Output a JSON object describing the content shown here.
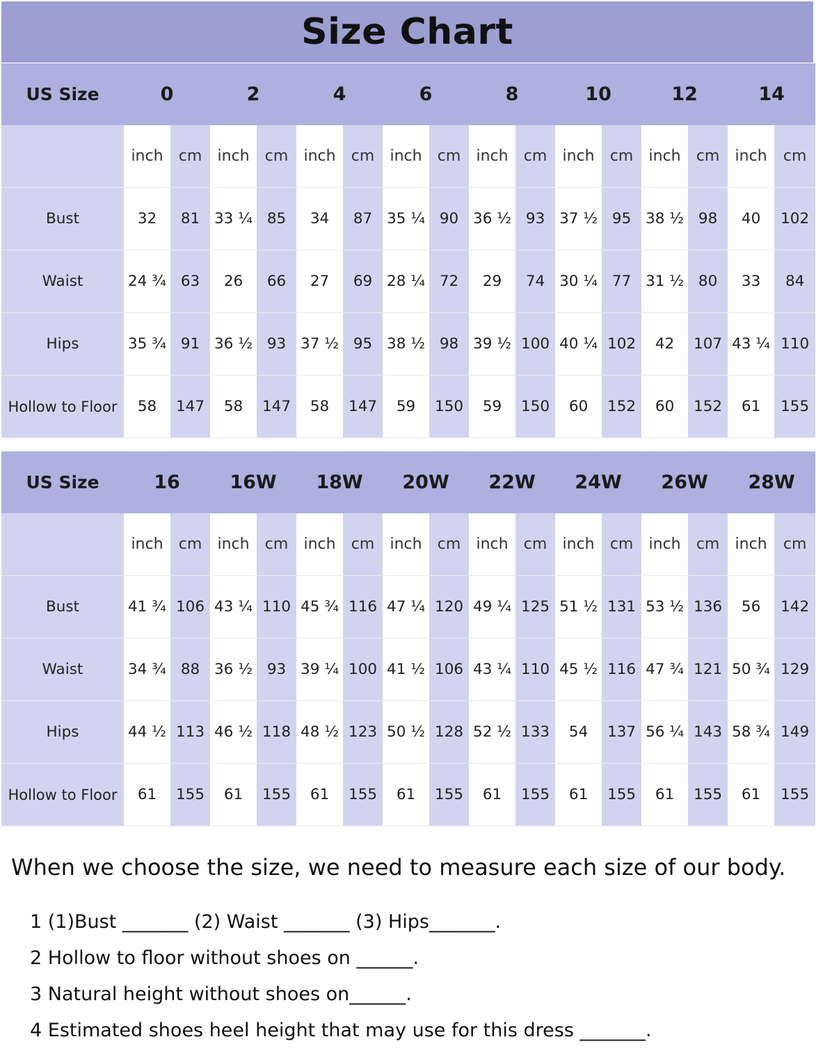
{
  "title": "Size Chart",
  "tables": [
    {
      "header_label": "US Size",
      "sizes": [
        "0",
        "2",
        "4",
        "6",
        "8",
        "10",
        "12",
        "14"
      ],
      "units": [
        "inch",
        "cm",
        "inch",
        "cm",
        "inch",
        "cm",
        "inch",
        "cm",
        "inch",
        "cm",
        "inch",
        "cm",
        "inch",
        "cm",
        "inch",
        "cm"
      ],
      "rows": [
        {
          "label": "Bust",
          "values": [
            "32",
            "81",
            "33 ¼",
            "85",
            "34",
            "87",
            "35 ¼",
            "90",
            "36 ½",
            "93",
            "37 ½",
            "95",
            "38 ½",
            "98",
            "40",
            "102"
          ]
        },
        {
          "label": "Waist",
          "values": [
            "24 ¾",
            "63",
            "26",
            "66",
            "27",
            "69",
            "28 ¼",
            "72",
            "29",
            "74",
            "30 ¼",
            "77",
            "31 ½",
            "80",
            "33",
            "84"
          ]
        },
        {
          "label": "Hips",
          "values": [
            "35 ¾",
            "91",
            "36 ½",
            "93",
            "37 ½",
            "95",
            "38 ½",
            "98",
            "39 ½",
            "100",
            "40 ¼",
            "102",
            "42",
            "107",
            "43 ¼",
            "110"
          ]
        },
        {
          "label": "Hollow to Floor",
          "values": [
            "58",
            "147",
            "58",
            "147",
            "58",
            "147",
            "59",
            "150",
            "59",
            "150",
            "60",
            "152",
            "60",
            "152",
            "61",
            "155"
          ]
        }
      ]
    },
    {
      "header_label": "US Size",
      "sizes": [
        "16",
        "16W",
        "18W",
        "20W",
        "22W",
        "24W",
        "26W",
        "28W"
      ],
      "units": [
        "inch",
        "cm",
        "inch",
        "cm",
        "inch",
        "cm",
        "inch",
        "cm",
        "inch",
        "cm",
        "inch",
        "cm",
        "inch",
        "cm",
        "inch",
        "cm"
      ],
      "rows": [
        {
          "label": "Bust",
          "values": [
            "41 ¾",
            "106",
            "43 ¼",
            "110",
            "45 ¾",
            "116",
            "47 ¼",
            "120",
            "49 ¼",
            "125",
            "51 ½",
            "131",
            "53 ½",
            "136",
            "56",
            "142"
          ]
        },
        {
          "label": "Waist",
          "values": [
            "34 ¾",
            "88",
            "36 ½",
            "93",
            "39 ¼",
            "100",
            "41 ½",
            "106",
            "43 ¼",
            "110",
            "45 ½",
            "116",
            "47 ¾",
            "121",
            "50 ¾",
            "129"
          ]
        },
        {
          "label": "Hips",
          "values": [
            "44 ½",
            "113",
            "46 ½",
            "118",
            "48 ½",
            "123",
            "50 ½",
            "128",
            "52 ½",
            "133",
            "54",
            "137",
            "56 ¼",
            "143",
            "58 ¾",
            "149"
          ]
        },
        {
          "label": "Hollow to Floor",
          "values": [
            "61",
            "155",
            "61",
            "155",
            "61",
            "155",
            "61",
            "155",
            "61",
            "155",
            "61",
            "155",
            "61",
            "155",
            "61",
            "155"
          ]
        }
      ]
    }
  ],
  "note": "When we choose the size, we need to measure each size of our body.",
  "questions": [
    "1 (1)Bust _______ (2) Waist _______ (3) Hips_______.",
    "2 Hollow to floor without shoes on ______.",
    "3 Natural height without shoes on______.",
    "4 Estimated shoes heel height that may use for this dress _______."
  ],
  "colors": {
    "title_band": "#9c9fd1",
    "header_band": "#aeb1df",
    "lavender_cell": "#d2d4ef",
    "white_cell": "#ffffff"
  }
}
